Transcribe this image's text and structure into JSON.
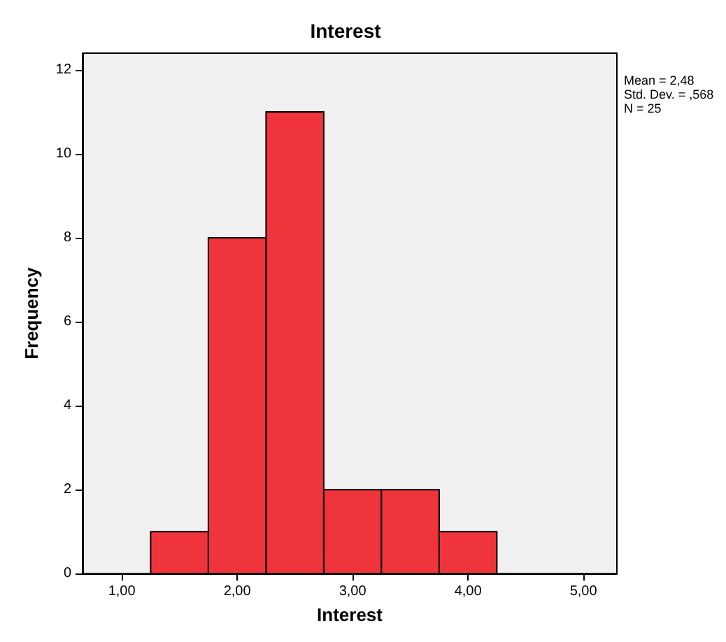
{
  "chart_data": {
    "type": "histogram",
    "title": "Interest",
    "xlabel": "Interest",
    "ylabel": "Frequency",
    "bins": [
      1.25,
      1.75,
      2.25,
      2.75,
      3.25,
      3.75,
      4.25
    ],
    "values": [
      1,
      8,
      11,
      2,
      2,
      1
    ],
    "color": "#f0343c",
    "xlim": [
      0.66,
      5.29
    ],
    "xticks": [
      {
        "value": 1,
        "label": "1,00"
      },
      {
        "value": 2,
        "label": "2,00"
      },
      {
        "value": 3,
        "label": "3,00"
      },
      {
        "value": 4,
        "label": "4,00"
      },
      {
        "value": 5,
        "label": "5,00"
      }
    ],
    "ylim": [
      0,
      12.4
    ],
    "yticks": [
      0,
      2,
      4,
      6,
      8,
      10,
      12
    ],
    "annotations": [
      "Mean = 2,48",
      "Std. Dev. = ,568",
      "N = 25"
    ],
    "grid": false
  }
}
